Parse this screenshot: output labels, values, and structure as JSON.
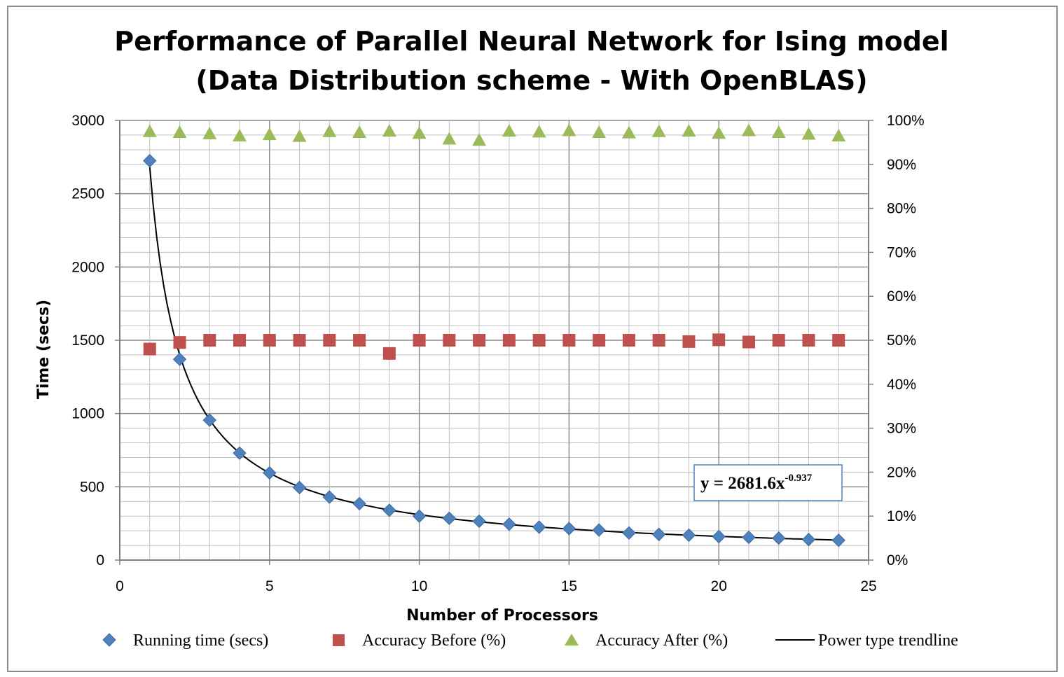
{
  "chart_data": {
    "type": "scatter",
    "title_lines": [
      "Performance of Parallel Neural Network for Ising model",
      "(Data Distribution scheme - With OpenBLAS)"
    ],
    "xlabel": "Number of Processors",
    "ylabel": "Time (secs)",
    "xlim": [
      0,
      25
    ],
    "ylim": [
      0,
      3000
    ],
    "y2lim": [
      0,
      100
    ],
    "x_ticks": [
      0,
      5,
      10,
      15,
      20,
      25
    ],
    "y_ticks": [
      0,
      500,
      1000,
      1500,
      2000,
      2500,
      3000
    ],
    "y2_ticks": [
      "0%",
      "10%",
      "20%",
      "30%",
      "40%",
      "50%",
      "60%",
      "70%",
      "80%",
      "90%",
      "100%"
    ],
    "grid": true,
    "legend_position": "bottom",
    "x": [
      1,
      2,
      3,
      4,
      5,
      6,
      7,
      8,
      9,
      10,
      11,
      12,
      13,
      14,
      15,
      16,
      17,
      18,
      19,
      20,
      21,
      22,
      23,
      24
    ],
    "series": [
      {
        "name": "Running time (secs)",
        "axis": "left",
        "marker": "diamond",
        "color": "#4f81bd",
        "values": [
          2725,
          1370,
          955,
          730,
          595,
          495,
          430,
          385,
          340,
          300,
          285,
          265,
          245,
          225,
          215,
          205,
          185,
          175,
          170,
          160,
          155,
          150,
          140,
          135
        ]
      },
      {
        "name": "Accuracy Before (%)",
        "axis": "right",
        "marker": "square",
        "color": "#c0504d",
        "values": [
          48,
          49.5,
          50,
          50,
          50,
          50,
          50,
          50,
          47,
          50,
          50,
          50,
          50,
          50,
          50,
          50,
          50,
          50,
          49.7,
          50.1,
          49.6,
          50,
          50,
          50
        ]
      },
      {
        "name": "Accuracy After (%)",
        "axis": "right",
        "marker": "triangle",
        "color": "#9bbb59",
        "values": [
          97.5,
          97.3,
          97,
          96.5,
          96.8,
          96.4,
          97.5,
          97.3,
          97.6,
          97.1,
          95.8,
          95.5,
          97.6,
          97.4,
          97.7,
          97.3,
          97.2,
          97.5,
          97.6,
          97.1,
          97.7,
          97.3,
          96.9,
          96.5
        ]
      }
    ],
    "trendline": {
      "name": "Power type trendline",
      "type": "power",
      "coefficient": 2681.6,
      "exponent": -0.937,
      "color": "#000000",
      "equation_base": "y = 2681.6x",
      "equation_exponent": "-0.937"
    }
  },
  "colors": {
    "grid": "#8c8c8c",
    "frame": "#8c8c8c",
    "equation_border": "#4f81bd"
  }
}
